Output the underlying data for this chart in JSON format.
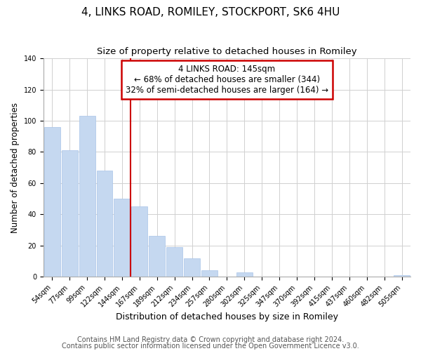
{
  "title": "4, LINKS ROAD, ROMILEY, STOCKPORT, SK6 4HU",
  "subtitle": "Size of property relative to detached houses in Romiley",
  "xlabel": "Distribution of detached houses by size in Romiley",
  "ylabel": "Number of detached properties",
  "bar_labels": [
    "54sqm",
    "77sqm",
    "99sqm",
    "122sqm",
    "144sqm",
    "167sqm",
    "189sqm",
    "212sqm",
    "234sqm",
    "257sqm",
    "280sqm",
    "302sqm",
    "325sqm",
    "347sqm",
    "370sqm",
    "392sqm",
    "415sqm",
    "437sqm",
    "460sqm",
    "482sqm",
    "505sqm"
  ],
  "bar_values": [
    96,
    81,
    103,
    68,
    50,
    45,
    26,
    19,
    12,
    4,
    0,
    3,
    0,
    0,
    0,
    0,
    0,
    0,
    0,
    0,
    1
  ],
  "bar_color": "#c5d8f0",
  "bar_edge_color": "#a8c4e8",
  "line_x_index": 5,
  "annotation_box_text": "4 LINKS ROAD: 145sqm\n← 68% of detached houses are smaller (344)\n32% of semi-detached houses are larger (164) →",
  "annotation_box_facecolor": "white",
  "annotation_box_edgecolor": "#cc0000",
  "ylim": [
    0,
    140
  ],
  "yticks": [
    0,
    20,
    40,
    60,
    80,
    100,
    120,
    140
  ],
  "footer_line1": "Contains HM Land Registry data © Crown copyright and database right 2024.",
  "footer_line2": "Contains public sector information licensed under the Open Government Licence v3.0.",
  "title_fontsize": 11,
  "subtitle_fontsize": 9.5,
  "xlabel_fontsize": 9,
  "ylabel_fontsize": 8.5,
  "tick_fontsize": 7,
  "footer_fontsize": 7,
  "annotation_fontsize": 8.5
}
